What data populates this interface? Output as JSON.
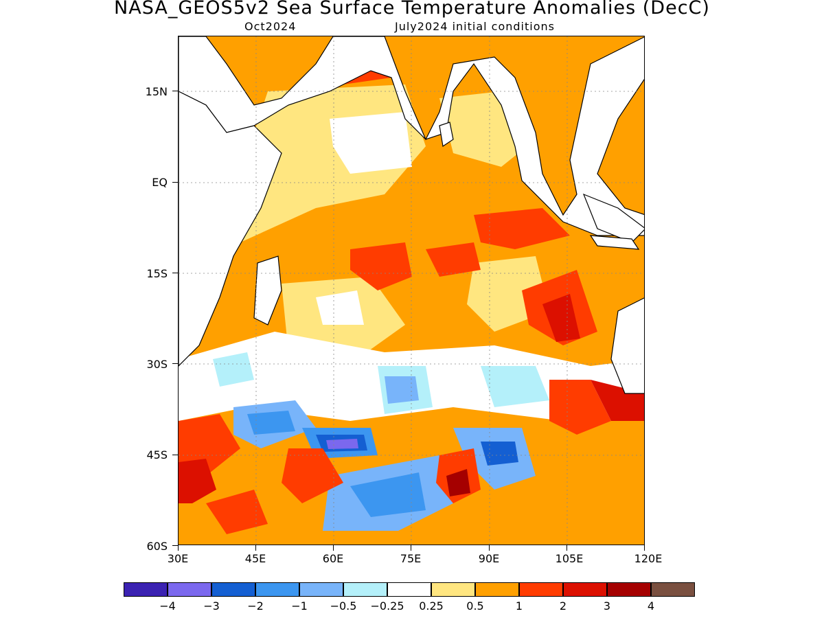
{
  "title": "NASA_GEOS5v2 Sea Surface Temperature Anomalies (DecC)",
  "subtitle_left": "Oct2024",
  "subtitle_right": "July2024 initial conditions",
  "map": {
    "lat_labels": [
      "15N",
      "EQ",
      "15S",
      "30S",
      "45S",
      "60S"
    ],
    "lon_labels": [
      "30E",
      "45E",
      "60E",
      "75E",
      "90E",
      "105E",
      "120E"
    ],
    "extent": {
      "lon": [
        30,
        120
      ],
      "lat": [
        -60,
        24
      ]
    }
  },
  "colorbar": {
    "colors": [
      "#3b22b2",
      "#7b68ee",
      "#145fd2",
      "#3c96f0",
      "#78b4fa",
      "#b4f0fa",
      "#ffffff",
      "#ffe680",
      "#ffa000",
      "#ff3c00",
      "#dc1000",
      "#a50000",
      "#7a5040"
    ],
    "labels": [
      "-4",
      "-3",
      "-2",
      "-1",
      "-0.5",
      "-0.25",
      "0.25",
      "0.5",
      "1",
      "2",
      "3",
      "4"
    ]
  },
  "chart_data": {
    "type": "heatmap",
    "title": "NASA_GEOS5v2 Sea Surface Temperature Anomalies (DecC)",
    "x": "longitude",
    "xlim": [
      30,
      120
    ],
    "ylim": [
      -60,
      24
    ],
    "levels": [
      -4,
      -3,
      -2,
      -1,
      -0.5,
      -0.25,
      0.25,
      0.5,
      1,
      2,
      3,
      4
    ]
  }
}
